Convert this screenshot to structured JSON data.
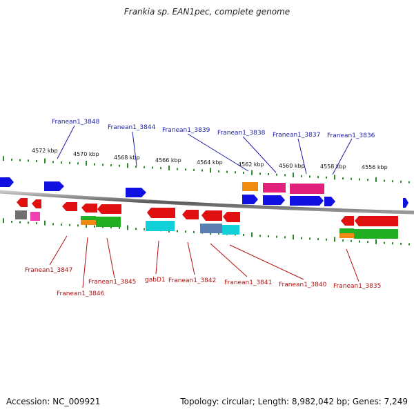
{
  "title": "Frankia sp. EAN1pec, complete genome",
  "footer": {
    "accession": "Accession: NC_009921",
    "summary": "Topology: circular; Length: 8,982,042 bp; Genes: 7,249"
  },
  "scale_labels": [
    "4572 kbp",
    "4570 kbp",
    "4568 kbp",
    "4566 kbp",
    "4564 kbp",
    "4562 kbp",
    "4560 kbp",
    "4558 kbp",
    "4556 kbp"
  ],
  "top_genes": [
    "Franean1_3848",
    "Franean1_3844",
    "Franean1_3839",
    "Franean1_3838",
    "Franean1_3837",
    "Franean1_3836"
  ],
  "bottom_genes": [
    "Franean1_3847",
    "Franean1_3846",
    "Franean1_3845",
    "gabD1",
    "Franean1_3842",
    "Franean1_3841",
    "Franean1_3840",
    "Franean1_3835"
  ],
  "colors": {
    "forward": "#1010e0",
    "reverse": "#e01010",
    "magenta": "#e0207a",
    "orange": "#f08a10",
    "green": "#22b022",
    "cyan": "#10d0d8",
    "gray": "#707070",
    "pink": "#ee40b0",
    "steel": "#5a7fb0",
    "tick": "#2a8a2a"
  }
}
